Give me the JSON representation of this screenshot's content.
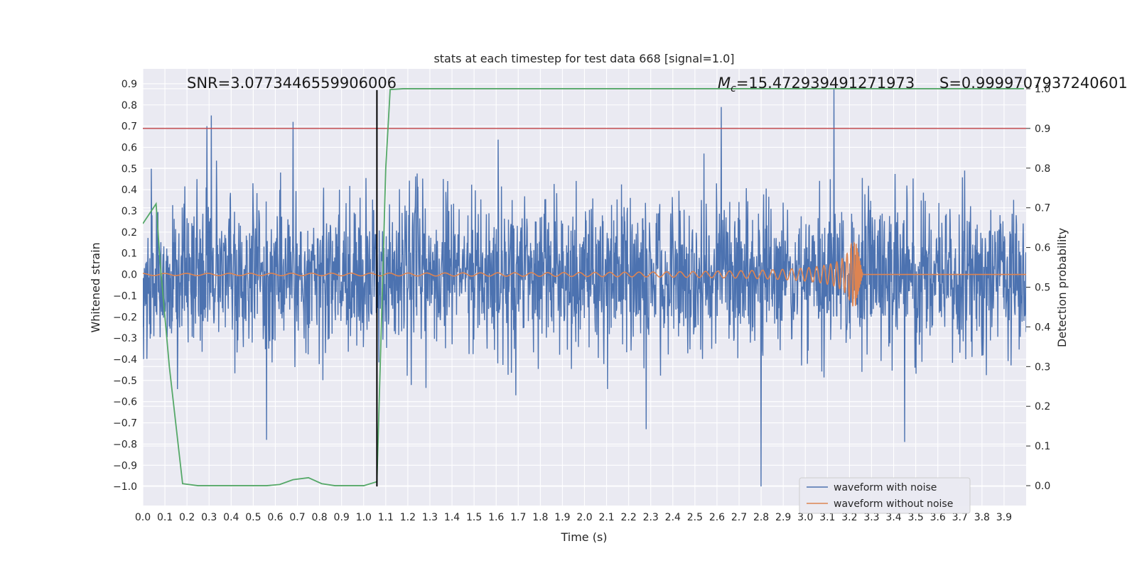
{
  "chart_data": {
    "type": "line",
    "title": "stats at each timestep for test data 668 [signal=1.0]",
    "xlabel": "Time (s)",
    "ylabel": "Whitened strain",
    "y2label": "Detection probability",
    "xlim": [
      0.0,
      4.0
    ],
    "ylim": [
      -1.09,
      0.97
    ],
    "y2lim": [
      -0.05,
      1.05
    ],
    "x_ticks": [
      "0.0",
      "0.1",
      "0.2",
      "0.3",
      "0.4",
      "0.5",
      "0.6",
      "0.7",
      "0.8",
      "0.9",
      "1.0",
      "1.1",
      "1.2",
      "1.3",
      "1.4",
      "1.5",
      "1.6",
      "1.7",
      "1.8",
      "1.9",
      "2.0",
      "2.1",
      "2.2",
      "2.3",
      "2.4",
      "2.5",
      "2.6",
      "2.7",
      "2.8",
      "2.9",
      "3.0",
      "3.1",
      "3.2",
      "3.3",
      "3.4",
      "3.5",
      "3.6",
      "3.7",
      "3.8",
      "3.9"
    ],
    "y_ticks": [
      "0.9",
      "0.8",
      "0.7",
      "0.6",
      "0.5",
      "0.4",
      "0.3",
      "0.2",
      "0.1",
      "0.0",
      "−0.1",
      "−0.2",
      "−0.3",
      "−0.4",
      "−0.5",
      "−0.6",
      "−0.7",
      "−0.8",
      "−0.9",
      "−1.0"
    ],
    "y2_ticks": [
      "1.0",
      "0.9",
      "0.8",
      "0.7",
      "0.6",
      "0.5",
      "0.4",
      "0.3",
      "0.2",
      "0.1",
      "0.0"
    ],
    "grid": true,
    "legend_placement": "lower-right",
    "annotations": {
      "snr": "SNR=3.0773446559906006",
      "mc_symbol": "M",
      "mc_sub": "c",
      "mc_value": "=15.472939491271973",
      "s_value": "S=0.9999707937240601"
    },
    "threshold_line": {
      "y2": 0.9,
      "color": "#c44e52"
    },
    "detection_marker_x": 1.06,
    "series": [
      {
        "name": "waveform with noise",
        "axis": "left",
        "color": "#4c72b0",
        "noise_amplitude": 0.25,
        "peaks": [
          [
            0.29,
            0.7
          ],
          [
            0.31,
            0.75
          ],
          [
            0.68,
            0.72
          ],
          [
            2.62,
            0.79
          ],
          [
            2.8,
            -1.0
          ],
          [
            3.13,
            0.88
          ],
          [
            3.45,
            -0.79
          ],
          [
            0.56,
            -0.78
          ],
          [
            2.28,
            -0.73
          ]
        ]
      },
      {
        "name": "waveform without noise",
        "axis": "left",
        "color": "#dd8452",
        "description_chirp": {
          "t_merge": 3.23,
          "peak_amplitude": 0.15,
          "base_amplitude": 0.005
        }
      },
      {
        "name": "Detection probability",
        "axis": "right",
        "color": "#55a868",
        "x": [
          0.0,
          0.06,
          0.08,
          0.12,
          0.18,
          0.25,
          0.31,
          0.37,
          0.43,
          0.5,
          0.56,
          0.62,
          0.68,
          0.75,
          0.81,
          0.87,
          0.93,
          1.0,
          1.06,
          1.08,
          1.1,
          1.12,
          1.18,
          1.25,
          3.99
        ],
        "values": [
          0.66,
          0.71,
          0.55,
          0.3,
          0.005,
          0.0,
          0.0,
          0.0,
          0.0,
          0.0,
          0.0,
          0.003,
          0.015,
          0.02,
          0.005,
          0.0,
          0.0,
          0.0,
          0.01,
          0.4,
          0.8,
          0.998,
          1.0,
          1.0,
          1.0
        ]
      }
    ]
  }
}
